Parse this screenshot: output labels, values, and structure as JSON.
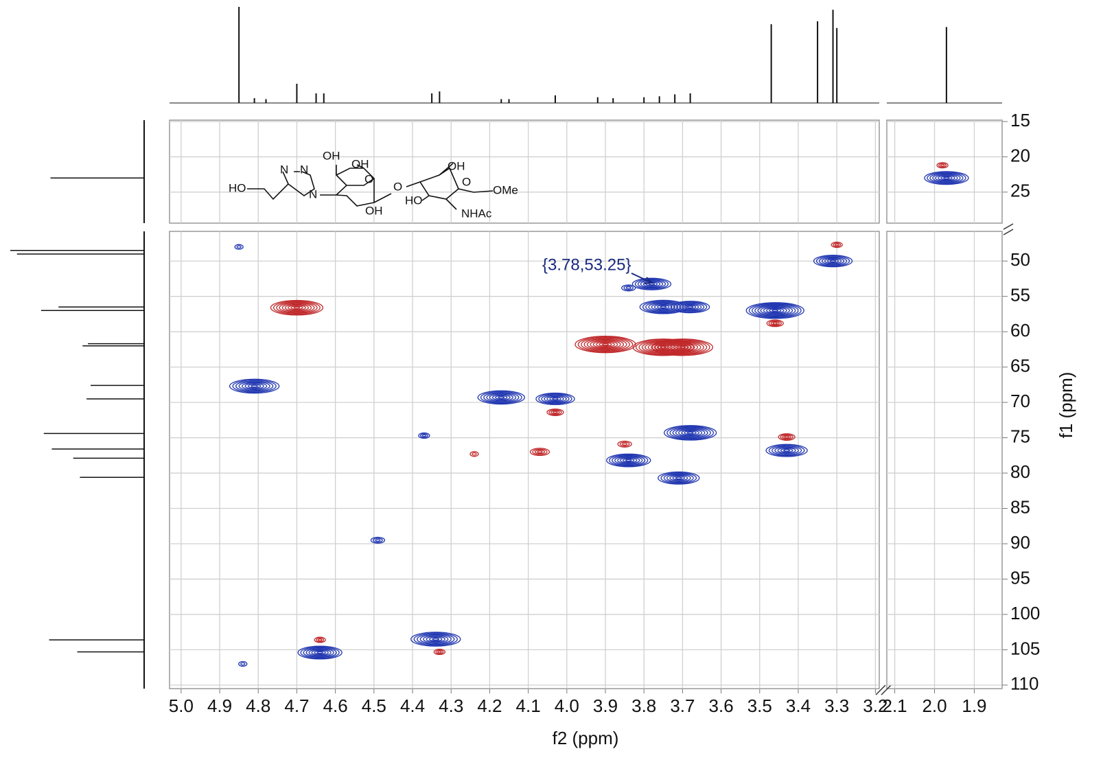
{
  "chart_data": {
    "type": "hsqc",
    "xlabel": "f2 (ppm)",
    "ylabel": "f1 (ppm)",
    "x_segments": [
      {
        "xlim": [
          5.03,
          3.19
        ],
        "xticks": [
          {
            "value": 5,
            "label": "5.0"
          },
          4.9,
          4.8,
          4.7,
          4.6,
          4.5,
          4.4,
          4.3,
          4.2,
          4.1,
          {
            "value": 4,
            "label": "4.0"
          },
          3.9,
          3.8,
          3.7,
          3.6,
          3.5,
          3.4,
          3.3,
          3.2
        ]
      },
      {
        "xlim": [
          2.12,
          1.83
        ],
        "xticks": [
          2.1,
          {
            "value": 2,
            "label": "2.0"
          },
          1.9
        ]
      }
    ],
    "y_segments": [
      {
        "ylim": [
          14.8,
          29.4
        ],
        "yticks": [
          15,
          20,
          25
        ]
      },
      {
        "ylim": [
          45.8,
          110.5
        ],
        "yticks": [
          50,
          55,
          60,
          65,
          70,
          75,
          80,
          85,
          90,
          95,
          100,
          105,
          110
        ]
      }
    ],
    "grid": true,
    "series": [
      {
        "name": "positive",
        "color": "#1f35b0",
        "x": [
          1.97,
          4.85,
          3.78,
          3.84,
          3.31,
          3.75,
          3.68,
          3.46,
          4.81,
          4.17,
          4.03,
          3.68,
          3.43,
          3.84,
          3.71,
          4.49,
          4.37,
          4.34,
          4.64,
          4.84
        ],
        "values": [
          23.0,
          48.0,
          53.25,
          53.8,
          50.0,
          56.5,
          56.5,
          57.0,
          67.7,
          69.3,
          69.5,
          74.3,
          76.8,
          78.2,
          80.7,
          89.5,
          74.7,
          103.5,
          105.4,
          107.0
        ],
        "sizes": [
          0.7,
          0.05,
          0.6,
          0.15,
          0.6,
          0.75,
          0.6,
          0.95,
          0.8,
          0.75,
          0.6,
          0.85,
          0.65,
          0.7,
          0.65,
          0.15,
          0.1,
          0.8,
          0.7,
          0.05
        ]
      },
      {
        "name": "negative",
        "color": "#c0282a",
        "x": [
          1.98,
          4.7,
          3.9,
          3.75,
          3.7,
          4.07,
          4.03,
          3.85,
          3.43,
          3.46,
          3.3,
          4.64,
          4.33,
          4.24
        ],
        "values": [
          21.2,
          56.6,
          61.8,
          62.2,
          62.2,
          77.0,
          71.4,
          75.9,
          74.9,
          58.8,
          47.7,
          103.6,
          105.3,
          77.3
        ],
        "sizes": [
          0.1,
          0.85,
          1.0,
          1.0,
          1.0,
          0.25,
          0.2,
          0.15,
          0.2,
          0.2,
          0.1,
          0.1,
          0.1,
          0.05
        ]
      }
    ],
    "f2_projection": {
      "x": [
        4.85,
        4.81,
        4.78,
        4.7,
        4.65,
        4.63,
        4.35,
        4.33,
        4.17,
        4.15,
        4.03,
        3.92,
        3.88,
        3.8,
        3.76,
        3.72,
        3.68,
        3.47,
        3.35,
        3.31,
        3.3,
        1.97
      ],
      "values": [
        1.0,
        0.05,
        0.04,
        0.2,
        0.1,
        0.1,
        0.1,
        0.12,
        0.04,
        0.04,
        0.08,
        0.06,
        0.05,
        0.06,
        0.07,
        0.09,
        0.1,
        0.82,
        0.85,
        0.97,
        0.78,
        0.79
      ]
    },
    "f1_projection": {
      "x": [
        23,
        48.5,
        49,
        57,
        56.5,
        62,
        61.7,
        67.6,
        69.5,
        74.4,
        76.6,
        77.9,
        80.6,
        103.6,
        105.3
      ],
      "values": [
        0.7,
        1.0,
        0.95,
        0.77,
        0.64,
        0.46,
        0.42,
        0.4,
        0.43,
        0.75,
        0.69,
        0.53,
        0.48,
        0.71,
        0.5
      ]
    },
    "annotation": "{3.78,53.25}",
    "structure": {
      "labels": [
        "HO",
        "N",
        "N",
        "N",
        "OH",
        "OH",
        "O",
        "OH",
        "O",
        "HO",
        "OH",
        "O",
        "OMe",
        "NHAc"
      ]
    }
  }
}
